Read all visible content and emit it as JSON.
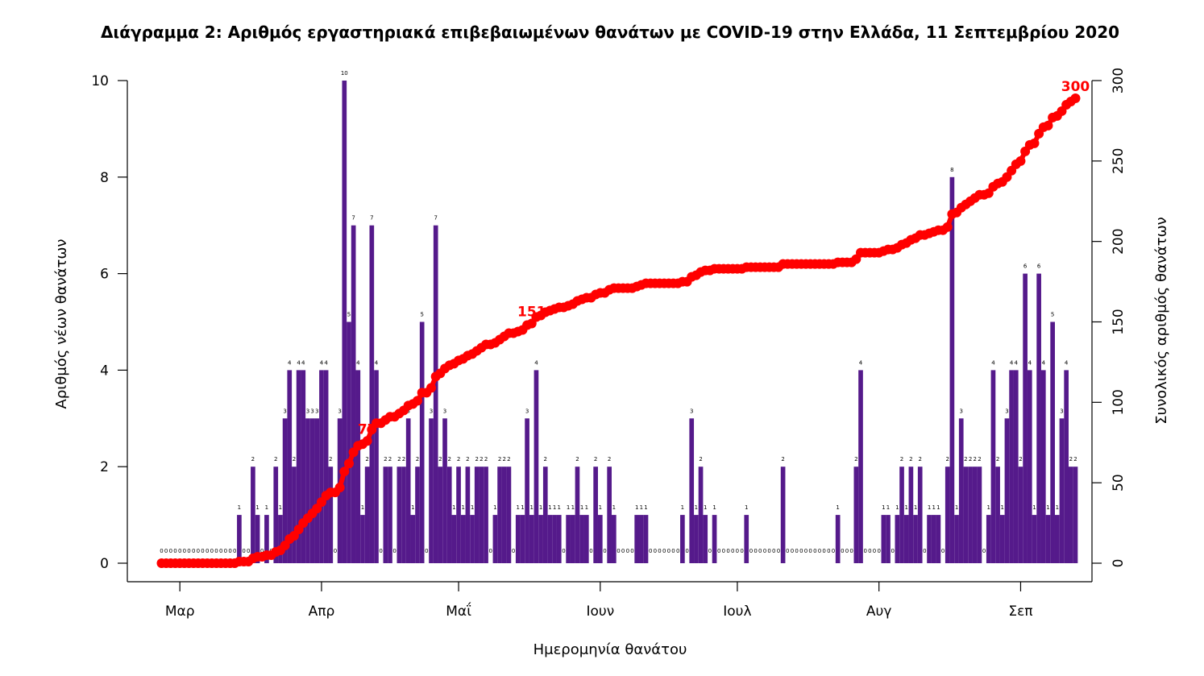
{
  "chart_data": {
    "type": "bar",
    "title": "Διάγραμμα 2: Αριθμός εργαστηριακά επιβεβαιωμένων θανάτων με COVID-19 στην Ελλάδα, 11 Σεπτεμβρίου 2020",
    "xlabel": "Ημερομηνία θανάτου",
    "ylabel": "Αριθμός νέων θανάτων",
    "y2label": "Συνολικός αριθμός θανάτων",
    "x_start": "2020-02-26",
    "x_end": "2020-09-10",
    "x_ticks": [
      "Μαρ",
      "Απρ",
      "Μαΐ",
      "Ιουν",
      "Ιουλ",
      "Αυγ",
      "Σεπ"
    ],
    "x_tick_dates": [
      "2020-03-01",
      "2020-04-01",
      "2020-05-01",
      "2020-06-01",
      "2020-07-01",
      "2020-08-01",
      "2020-09-01"
    ],
    "ylim": [
      0,
      10
    ],
    "y_ticks": [
      "0",
      "2",
      "4",
      "6",
      "8",
      "10"
    ],
    "y2lim": [
      0,
      300
    ],
    "y2_ticks": [
      "0",
      "50",
      "100",
      "150",
      "200",
      "250",
      "300"
    ],
    "series": [
      {
        "name": "",
        "color": "#551a8b",
        "values": [
          0,
          0,
          0,
          0,
          0,
          0,
          0,
          0,
          0,
          0,
          0,
          0,
          0,
          0,
          0,
          0,
          0,
          1,
          0,
          0,
          2,
          1,
          0,
          1,
          0,
          2,
          1,
          3,
          4,
          2,
          4,
          4,
          3,
          3,
          3,
          4,
          4,
          2,
          0,
          3,
          10,
          5,
          7,
          4,
          1,
          2,
          7,
          4,
          0,
          2,
          2,
          0,
          2,
          2,
          3,
          1,
          2,
          5,
          0,
          3,
          7,
          2,
          3,
          2,
          1,
          2,
          1,
          2,
          1,
          2,
          2,
          2,
          0,
          1,
          2,
          2,
          2,
          0,
          1,
          1,
          3,
          1,
          4,
          1,
          2,
          1,
          1,
          1,
          0,
          1,
          1,
          2,
          1,
          1,
          0,
          2,
          1,
          0,
          2,
          1,
          0,
          0,
          0,
          0,
          1,
          1,
          1,
          0,
          0,
          0,
          0,
          0,
          0,
          0,
          1,
          0,
          3,
          1,
          2,
          1,
          0,
          1,
          0,
          0,
          0,
          0,
          0,
          0,
          1,
          0,
          0,
          0,
          0,
          0,
          0,
          0,
          2,
          0,
          0,
          0,
          0,
          0,
          0,
          0,
          0,
          0,
          0,
          0,
          1,
          0,
          0,
          0,
          2,
          4,
          0,
          0,
          0,
          0,
          1,
          1,
          0,
          1,
          2,
          1,
          2,
          1,
          2,
          0,
          1,
          1,
          1,
          0,
          2,
          8,
          1,
          3,
          2,
          2,
          2,
          2,
          0,
          1,
          4,
          2,
          1,
          3,
          4,
          4,
          2,
          6,
          4,
          1,
          6,
          4,
          1,
          5,
          1,
          3,
          4,
          2,
          2
        ]
      },
      {
        "name": "",
        "color": "#ff0000",
        "cumulative": true,
        "values": [
          0,
          0,
          0,
          0,
          0,
          0,
          0,
          0,
          0,
          0,
          0,
          0,
          0,
          0,
          0,
          0,
          0,
          1,
          1,
          1,
          3,
          4,
          4,
          5,
          5,
          7,
          8,
          11,
          15,
          17,
          21,
          25,
          28,
          31,
          34,
          38,
          42,
          44,
          44,
          47,
          57,
          62,
          69,
          73,
          74,
          76,
          83,
          87,
          87,
          89,
          91,
          91,
          93,
          95,
          98,
          99,
          101,
          106,
          106,
          109,
          116,
          118,
          121,
          123,
          124,
          126,
          127,
          129,
          130,
          132,
          134,
          136,
          136,
          137,
          139,
          141,
          143,
          143,
          144,
          145,
          148,
          149,
          153,
          154,
          156,
          157,
          158,
          159,
          159,
          160,
          161,
          163,
          164,
          165,
          165,
          167,
          168,
          168,
          170,
          171,
          171,
          171,
          171,
          171,
          172,
          173,
          174,
          174,
          174,
          174,
          174,
          174,
          174,
          174,
          175,
          175,
          178,
          179,
          181,
          182,
          182,
          183,
          183,
          183,
          183,
          183,
          183,
          183,
          184,
          184,
          184,
          184,
          184,
          184,
          184,
          184,
          186,
          186,
          186,
          186,
          186,
          186,
          186,
          186,
          186,
          186,
          186,
          186,
          187,
          187,
          187,
          187,
          189,
          193,
          193,
          193,
          193,
          193,
          194,
          195,
          195,
          196,
          198,
          199,
          201,
          202,
          204,
          204,
          205,
          206,
          207,
          207,
          209,
          217,
          218,
          221,
          223,
          225,
          227,
          229,
          229,
          230,
          234,
          236,
          237,
          240,
          244,
          248,
          250,
          256,
          260,
          261,
          267,
          271,
          272,
          277,
          278,
          281,
          285,
          287,
          289
        ],
        "labels": [
          "77",
          "151",
          "300"
        ]
      }
    ]
  }
}
